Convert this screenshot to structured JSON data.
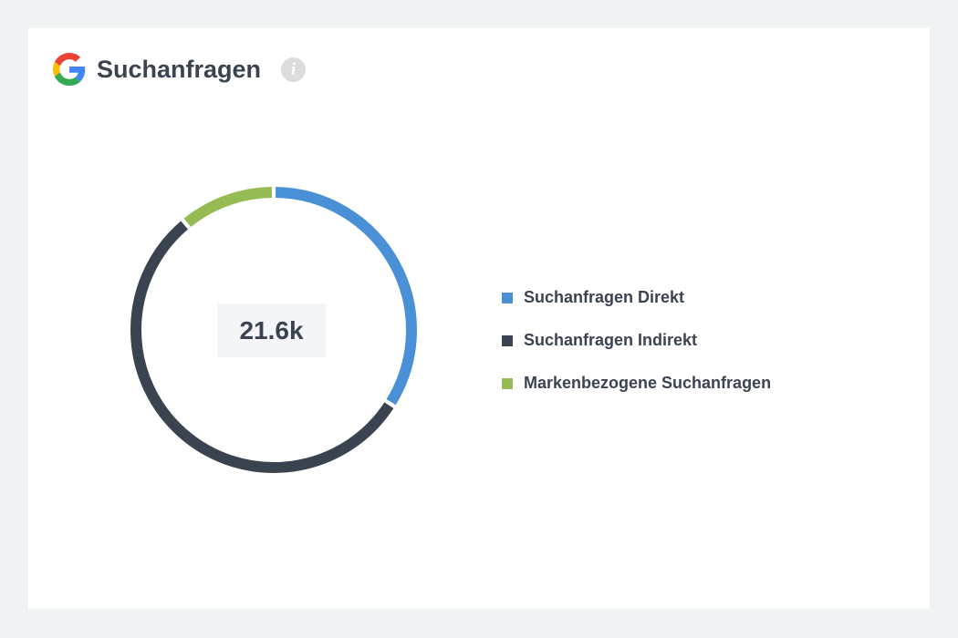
{
  "header": {
    "title": "Suchanfragen",
    "logo_icon": "google-g-icon",
    "info_icon": "info-icon",
    "info_glyph": "i"
  },
  "colors": {
    "direkt": "#4a90d6",
    "indirekt": "#3a4450",
    "marken": "#97bb53"
  },
  "chart_data": {
    "type": "pie",
    "donut": true,
    "center_label": "21.6k",
    "series": [
      {
        "name": "Suchanfragen Direkt",
        "value": 0.34,
        "color": "#4a90d6"
      },
      {
        "name": "Suchanfragen Indirekt",
        "value": 0.55,
        "color": "#3a4450"
      },
      {
        "name": "Markenbezogene Suchanfragen",
        "value": 0.11,
        "color": "#97bb53"
      }
    ],
    "legend_position": "right"
  }
}
